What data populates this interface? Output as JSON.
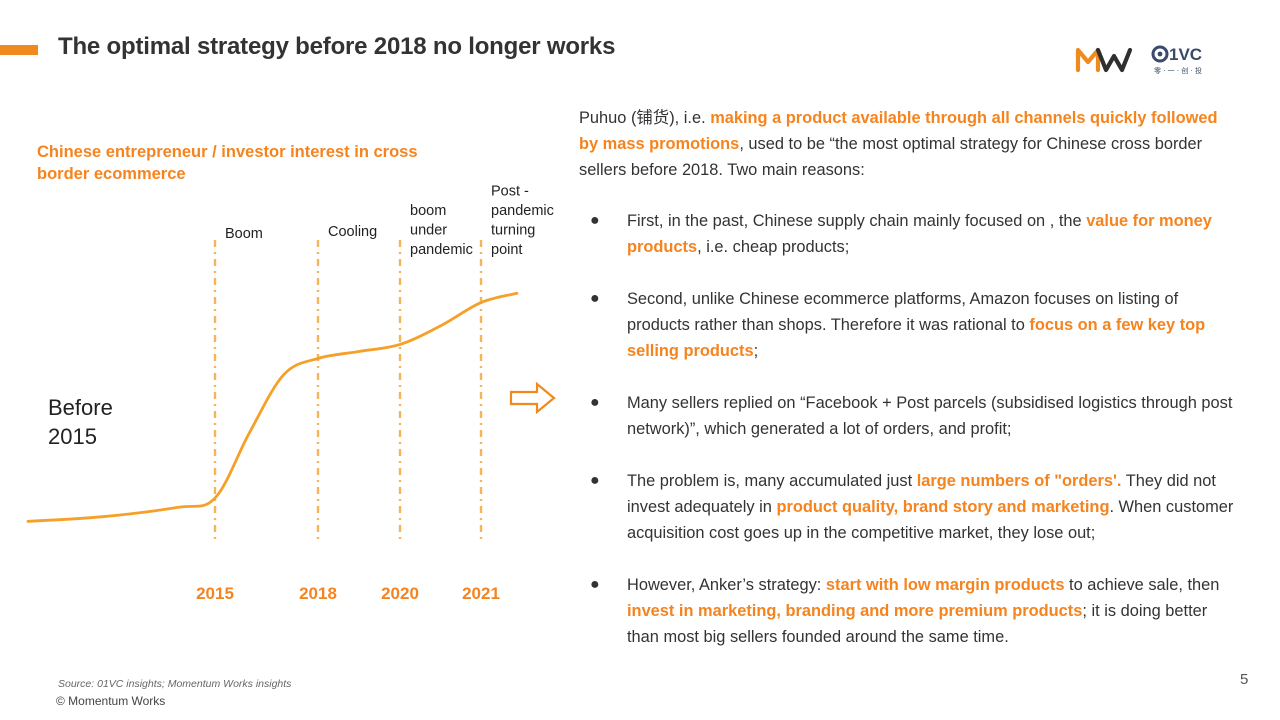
{
  "title": "The optimal strategy before 2018 no longer works",
  "logos": {
    "left_text": "MW",
    "right_text": "01VC",
    "right_subtext": "零 一 创 投"
  },
  "colors": {
    "accent": "#F5841F",
    "curve": "#F5A028",
    "divider": "#F7B35A",
    "text": "#333333"
  },
  "chart_data": {
    "type": "line",
    "title": "Chinese entrepreneur / investor interest in cross border ecommerce",
    "xlabel": "",
    "ylabel": "",
    "grid": false,
    "x": [
      2010,
      2012,
      2014,
      2015,
      2016,
      2017,
      2018,
      2019,
      2020,
      2020.5,
      2021,
      2021.5
    ],
    "values": [
      2,
      4,
      8,
      12,
      40,
      65,
      72,
      75,
      78,
      86,
      96,
      100
    ],
    "ylim": [
      0,
      110
    ],
    "xlim": [
      2010,
      2021.5
    ],
    "ticks": [
      {
        "x": 2015,
        "label": "2015"
      },
      {
        "x": 2018,
        "label": "2018"
      },
      {
        "x": 2020,
        "label": "2020"
      },
      {
        "x": 2021,
        "label": "2021"
      }
    ],
    "annotations": [
      {
        "x": 2015,
        "lines": [
          "Boom"
        ]
      },
      {
        "x": 2018,
        "lines": [
          "Cooling"
        ]
      },
      {
        "x": 2020,
        "lines": [
          "boom",
          "under",
          "pandemic"
        ]
      },
      {
        "x": 2021,
        "lines": [
          "Post -",
          "pandemic",
          "turning",
          "point"
        ]
      }
    ],
    "period_label": "Before 2015"
  },
  "intro": {
    "t1": "Puhuo (铺货), i.e. ",
    "h1": "making a product available through all channels quickly followed by mass promotions",
    "t2": ", used to be “the most optimal strategy for Chinese cross border sellers before 2018. Two main reasons:"
  },
  "bullets": [
    {
      "t1": "First, in the past, Chinese supply chain mainly focused on , the ",
      "h1": "value for money products",
      "t2": ", i.e. cheap products;"
    },
    {
      "t1": "Second, unlike Chinese ecommerce platforms, Amazon focuses on listing of products rather than shops. Therefore it was rational to ",
      "h1": "focus on a few key top selling products",
      "t2": ";"
    },
    {
      "t1": "Many sellers replied on “Facebook + Post parcels (subsidised logistics through post network)”, which generated a lot of orders, and profit;"
    },
    {
      "t1": "The problem is, many accumulated just ",
      "h1": "large numbers of \"orders'.",
      "t2": " They did not invest adequately in ",
      "h2": "product quality, brand story and marketing",
      "t3": ". When customer acquisition cost goes up in the competitive market, they lose out;"
    },
    {
      "t1": "However, Anker’s strategy: ",
      "h1": "start with low margin products",
      "t2": " to achieve sale, then ",
      "h2": "invest in marketing, branding and more premium  products",
      "t3": ";  it is doing better than most big sellers founded around the same time."
    }
  ],
  "bullet_symbol": "●",
  "source": "Source: 01VC insights; Momentum Works insights",
  "copyright": "© Momentum Works",
  "page_number": "5"
}
